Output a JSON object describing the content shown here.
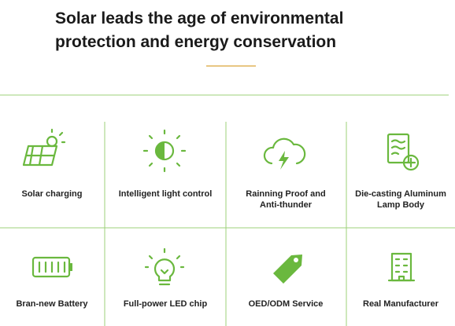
{
  "header": {
    "title_lines": [
      "Solar leads the age of environmental",
      "protection and energy conservation"
    ]
  },
  "features": [
    {
      "lines": [
        "Solar charging"
      ]
    },
    {
      "lines": [
        "Intelligent light control"
      ]
    },
    {
      "lines": [
        "Rainning Proof and",
        "Anti-thunder"
      ]
    },
    {
      "lines": [
        "Die-casting Aluminum",
        "Lamp Body"
      ]
    },
    {
      "lines": [
        "Bran-new Battery"
      ]
    },
    {
      "lines": [
        "Full-power LED chip"
      ]
    },
    {
      "lines": [
        "OED/ODM Service"
      ]
    },
    {
      "lines": [
        "Real Manufacturer"
      ]
    }
  ]
}
